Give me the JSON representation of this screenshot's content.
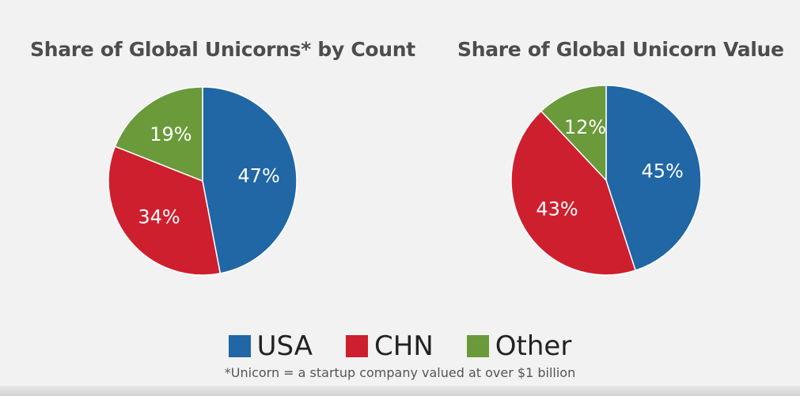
{
  "chart_data": [
    {
      "type": "pie",
      "title": "Share of Global Unicorns* by Count",
      "slices": [
        {
          "label": "USA",
          "value": 47,
          "display": "47%",
          "color": "#2166a5"
        },
        {
          "label": "CHN",
          "value": 34,
          "display": "34%",
          "color": "#ce1f2e"
        },
        {
          "label": "Other",
          "value": 19,
          "display": "19%",
          "color": "#6a9a3a"
        }
      ]
    },
    {
      "type": "pie",
      "title": "Share of Global Unicorn Value",
      "slices": [
        {
          "label": "USA",
          "value": 45,
          "display": "45%",
          "color": "#2166a5"
        },
        {
          "label": "CHN",
          "value": 43,
          "display": "43%",
          "color": "#ce1f2e"
        },
        {
          "label": "Other",
          "value": 12,
          "display": "12%",
          "color": "#6a9a3a"
        }
      ]
    }
  ],
  "legend": [
    {
      "label": "USA",
      "color": "#2166a5"
    },
    {
      "label": "CHN",
      "color": "#ce1f2e"
    },
    {
      "label": "Other",
      "color": "#6a9a3a"
    }
  ],
  "footnote": "*Unicorn = a startup company valued at over $1 billion"
}
